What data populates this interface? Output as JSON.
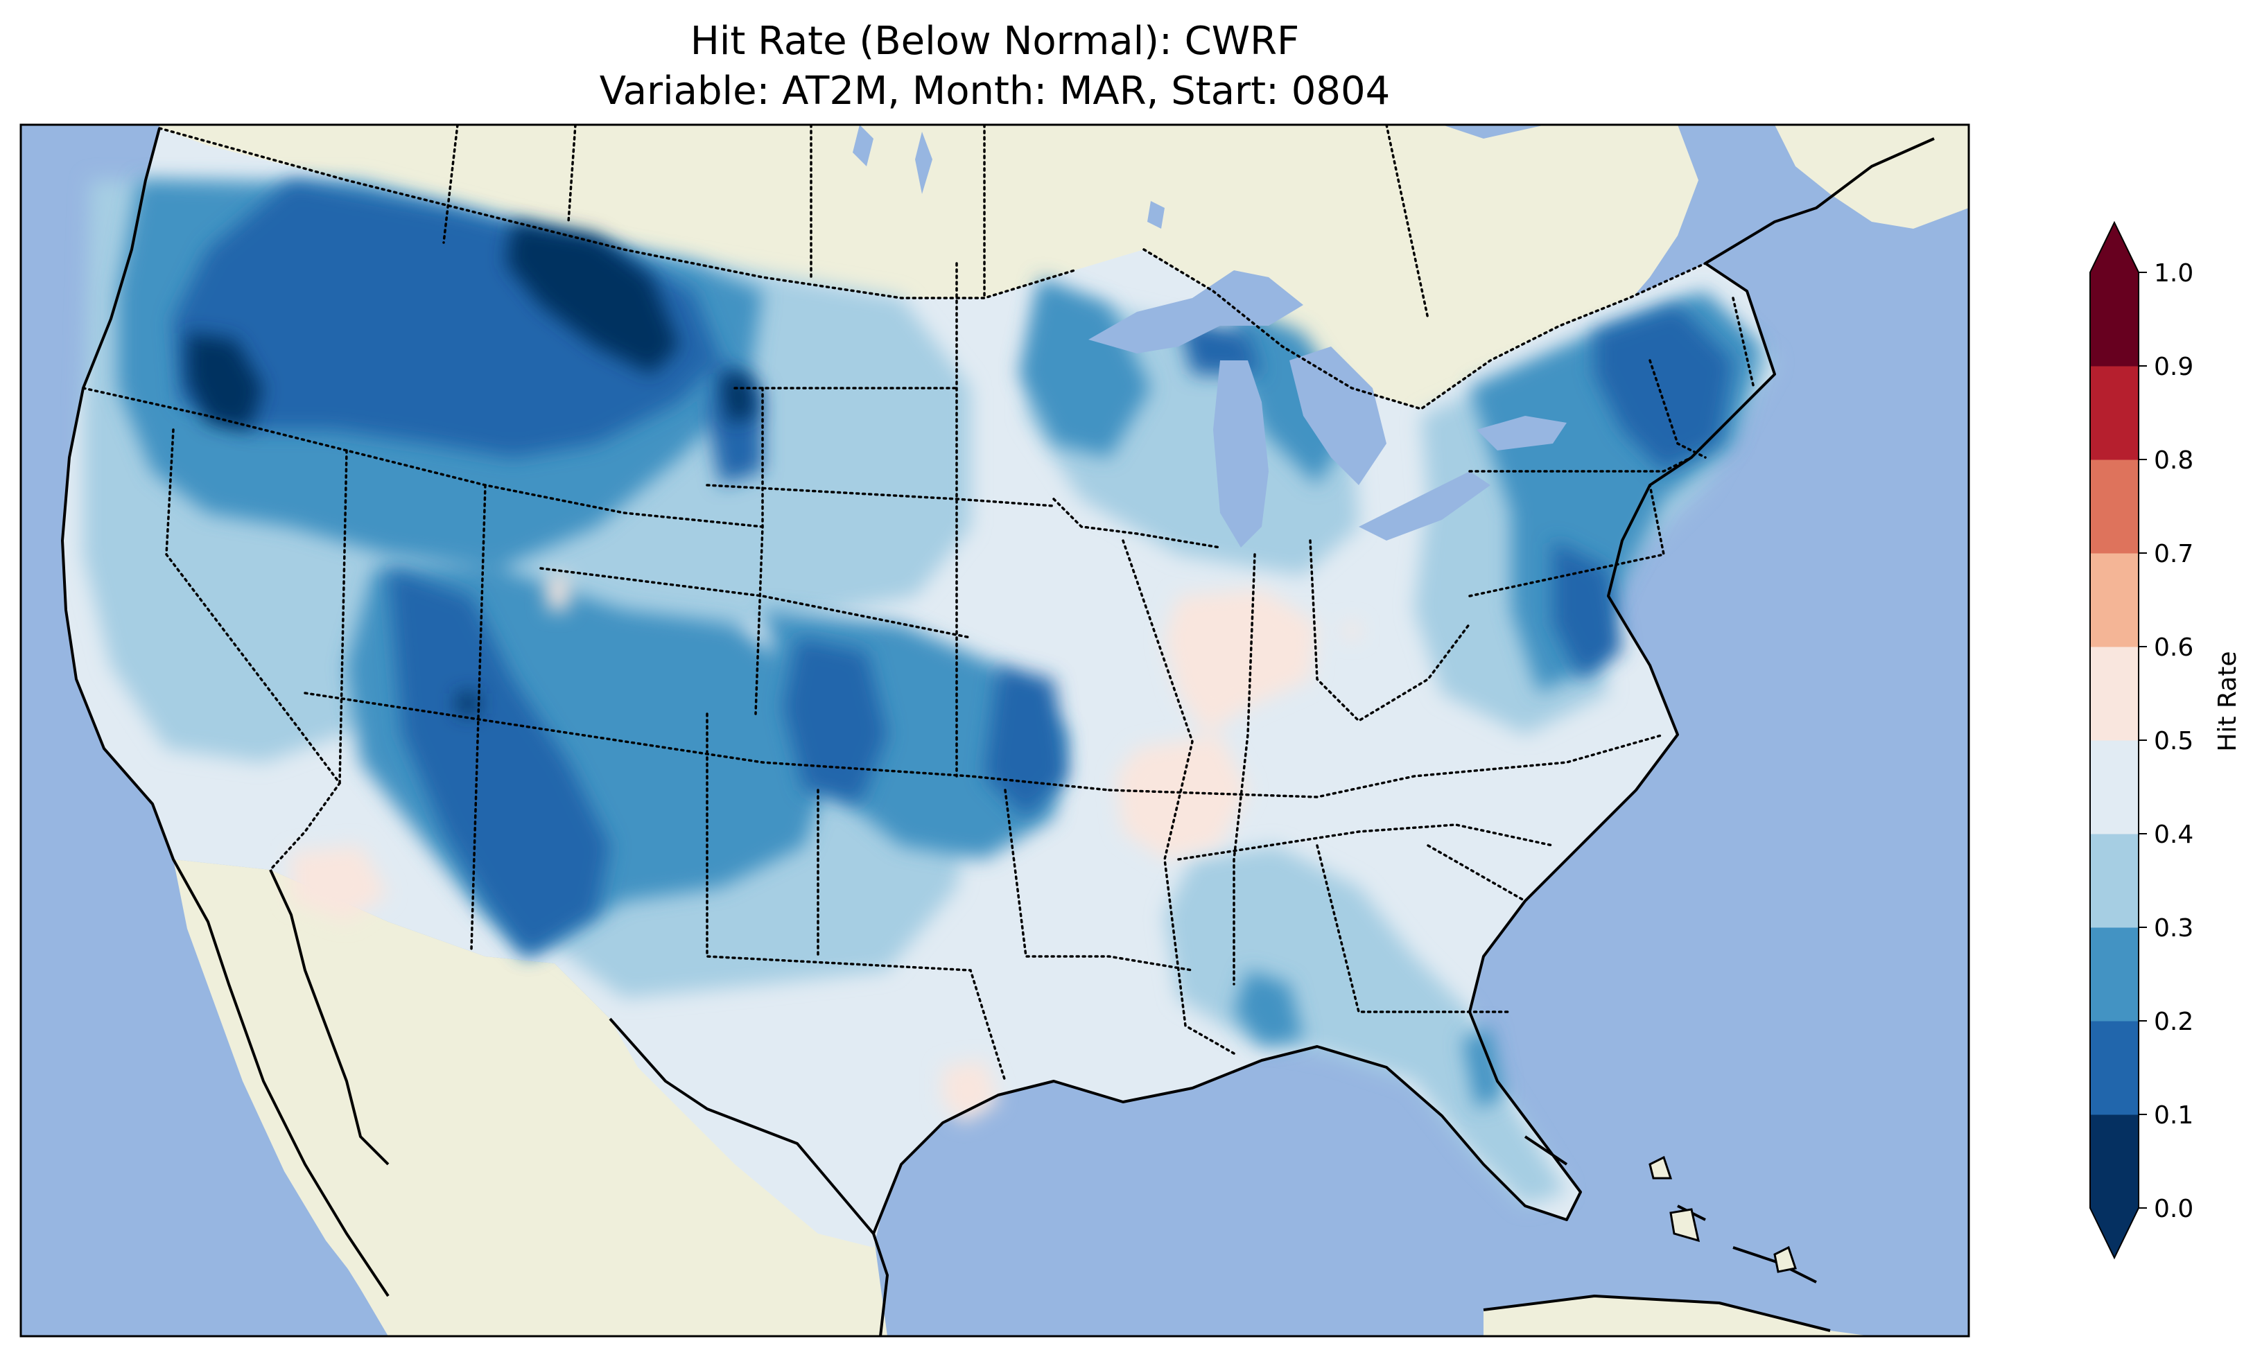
{
  "figure": {
    "title_line1": "Hit Rate (Below Normal): CWRF",
    "title_line2": "Variable: AT2M, Month: MAR, Start: 0804"
  },
  "map": {
    "type": "gridded-choropleth",
    "region": "Contiguous United States",
    "ocean_color": "#97b6e1",
    "land_color": "#efefdb",
    "coastline_color": "#000000",
    "border_style": "dotted",
    "regions": [
      {
        "name": "Pacific Northwest",
        "value_range": "0.1-0.3"
      },
      {
        "name": "Northern Rockies / Montana",
        "value_range": "0.0-0.2"
      },
      {
        "name": "Four Corners / Colorado",
        "value_range": "0.1-0.3"
      },
      {
        "name": "Southern Plains / Kansas",
        "value_range": "0.1-0.3"
      },
      {
        "name": "Central Illinois / Indiana",
        "value_range": "0.5-0.6"
      },
      {
        "name": "Mississippi River Valley",
        "value_range": "0.5-0.6"
      },
      {
        "name": "Northeast / New England",
        "value_range": "0.1-0.3"
      },
      {
        "name": "Southeast / Gulf Coast",
        "value_range": "0.3-0.5"
      },
      {
        "name": "Southern California / Arizona",
        "value_range": "0.4-0.6"
      },
      {
        "name": "South Texas coast",
        "value_range": "0.5-0.6"
      },
      {
        "name": "Florida",
        "value_range": "0.2-0.4"
      }
    ]
  },
  "colorbar": {
    "label": "Hit Rate",
    "extend": "both",
    "ticks": [
      "0.0",
      "0.1",
      "0.2",
      "0.3",
      "0.4",
      "0.5",
      "0.6",
      "0.7",
      "0.8",
      "0.9",
      "1.0"
    ],
    "bins": [
      {
        "range": [
          0.0,
          0.1
        ],
        "color": "#053061"
      },
      {
        "range": [
          0.1,
          0.2
        ],
        "color": "#2166ac"
      },
      {
        "range": [
          0.2,
          0.3
        ],
        "color": "#4393c3"
      },
      {
        "range": [
          0.3,
          0.4
        ],
        "color": "#a6cee3"
      },
      {
        "range": [
          0.4,
          0.5
        ],
        "color": "#e1ebf3"
      },
      {
        "range": [
          0.5,
          0.6
        ],
        "color": "#f9e6de"
      },
      {
        "range": [
          0.6,
          0.7
        ],
        "color": "#f4b596"
      },
      {
        "range": [
          0.7,
          0.8
        ],
        "color": "#de735c"
      },
      {
        "range": [
          0.8,
          0.9
        ],
        "color": "#b61f2e"
      },
      {
        "range": [
          0.9,
          1.0
        ],
        "color": "#67001f"
      }
    ]
  }
}
